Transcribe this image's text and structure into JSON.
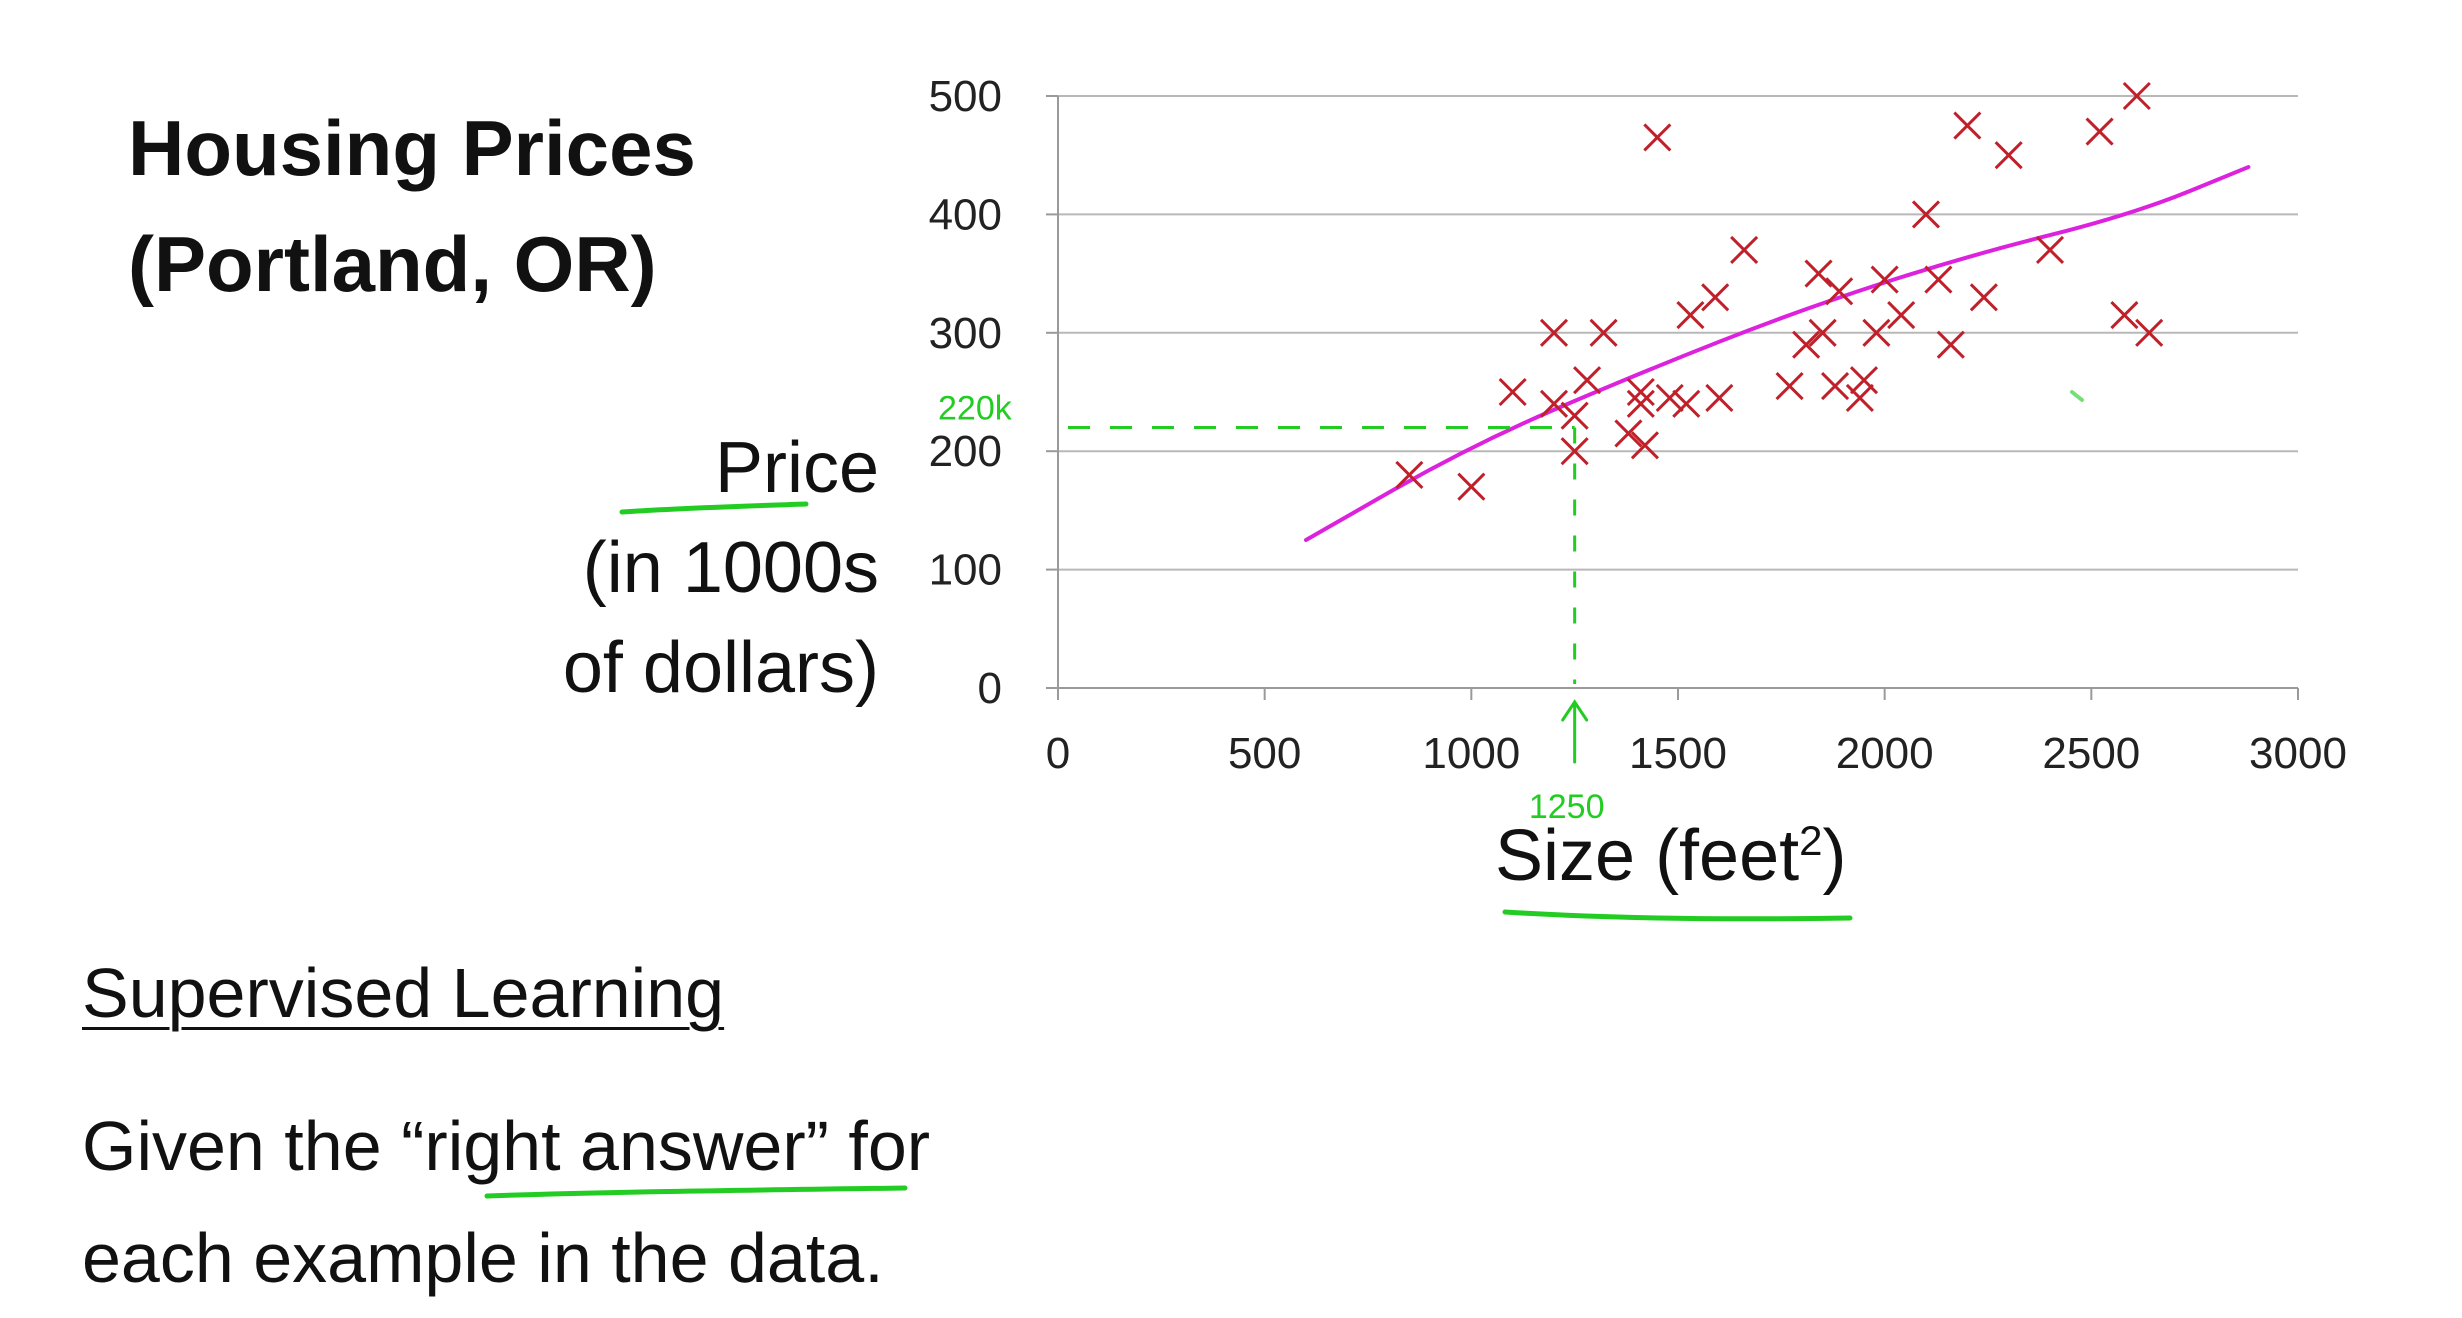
{
  "slide": {
    "title": "Housing Prices\n(Portland, OR)",
    "ylabel_lines": [
      "Price",
      "(in 1000s",
      "of dollars)"
    ],
    "xlabel_text": "Size (feet",
    "xlabel_sup": "2",
    "xlabel_close": ")",
    "section_heading": "Supervised Learning",
    "body_part1": "Given the “",
    "body_emph": "right answer",
    "body_part2": "” for",
    "body_line2": "each example in the data."
  },
  "chart_data": {
    "type": "scatter",
    "xlim": [
      0,
      3000
    ],
    "ylim": [
      0,
      500
    ],
    "xticks": [
      0,
      500,
      1000,
      1500,
      2000,
      2500,
      3000
    ],
    "yticks": [
      0,
      100,
      200,
      300,
      400,
      500
    ],
    "grid": "horizontal",
    "series": [
      {
        "marker": "x",
        "color": "#c0202a",
        "points": [
          [
            850,
            180
          ],
          [
            1000,
            170
          ],
          [
            1100,
            250
          ],
          [
            1200,
            300
          ],
          [
            1200,
            240
          ],
          [
            1250,
            230
          ],
          [
            1250,
            200
          ],
          [
            1280,
            260
          ],
          [
            1320,
            300
          ],
          [
            1380,
            215
          ],
          [
            1410,
            250
          ],
          [
            1410,
            240
          ],
          [
            1420,
            205
          ],
          [
            1450,
            465
          ],
          [
            1480,
            245
          ],
          [
            1520,
            240
          ],
          [
            1530,
            315
          ],
          [
            1590,
            330
          ],
          [
            1600,
            245
          ],
          [
            1660,
            370
          ],
          [
            1770,
            255
          ],
          [
            1810,
            290
          ],
          [
            1840,
            350
          ],
          [
            1850,
            300
          ],
          [
            1880,
            255
          ],
          [
            1890,
            335
          ],
          [
            1940,
            245
          ],
          [
            1950,
            260
          ],
          [
            1980,
            300
          ],
          [
            2000,
            345
          ],
          [
            2040,
            315
          ],
          [
            2100,
            400
          ],
          [
            2130,
            345
          ],
          [
            2160,
            290
          ],
          [
            2200,
            475
          ],
          [
            2240,
            330
          ],
          [
            2300,
            450
          ],
          [
            2400,
            370
          ],
          [
            2520,
            470
          ],
          [
            2580,
            315
          ],
          [
            2610,
            500
          ],
          [
            2640,
            300
          ]
        ]
      }
    ],
    "fit_line": {
      "color": "#dd22dd",
      "points": [
        [
          600,
          125
        ],
        [
          1000,
          205
        ],
        [
          1400,
          265
        ],
        [
          1800,
          320
        ],
        [
          2200,
          365
        ],
        [
          2600,
          400
        ],
        [
          2880,
          440
        ]
      ]
    },
    "annotations": {
      "color": "#22cc22",
      "y_marker_label": "220k",
      "y_marker_value": 220,
      "x_marker_label": "1250",
      "x_marker_value": 1250
    }
  }
}
